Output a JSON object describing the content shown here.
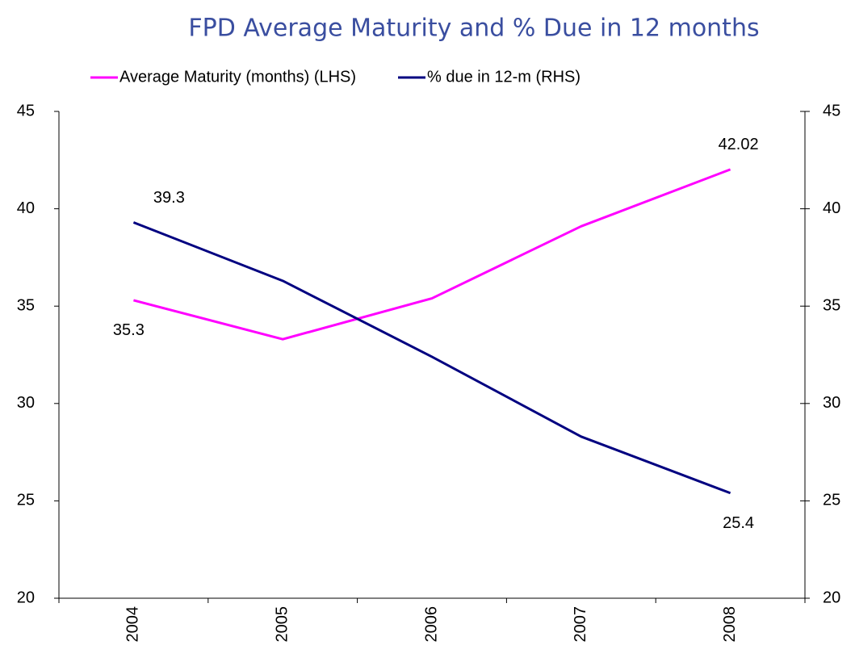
{
  "chart_data": {
    "type": "line",
    "title": "FPD Average Maturity and % Due in 12 months",
    "categories": [
      "2004",
      "2005",
      "2006",
      "2007",
      "2008"
    ],
    "series": [
      {
        "name": "Average Maturity (months) (LHS)",
        "color": "#ff00ff",
        "values": [
          35.3,
          33.3,
          35.4,
          39.1,
          42.02
        ],
        "labels_at": [
          0,
          4
        ]
      },
      {
        "name": "% due in 12-m (RHS)",
        "color": "#000080",
        "axis": "y2",
        "values": [
          39.3,
          36.3,
          32.4,
          28.3,
          25.4
        ],
        "labels_at": [
          0,
          4
        ]
      }
    ],
    "ylim": [
      20,
      45
    ],
    "yticks": [
      20,
      25,
      30,
      35,
      40,
      45
    ],
    "y2lim": [
      20,
      45
    ],
    "y2ticks": [
      20,
      25,
      30,
      35,
      40,
      45
    ],
    "legend": "top",
    "grid": false
  }
}
